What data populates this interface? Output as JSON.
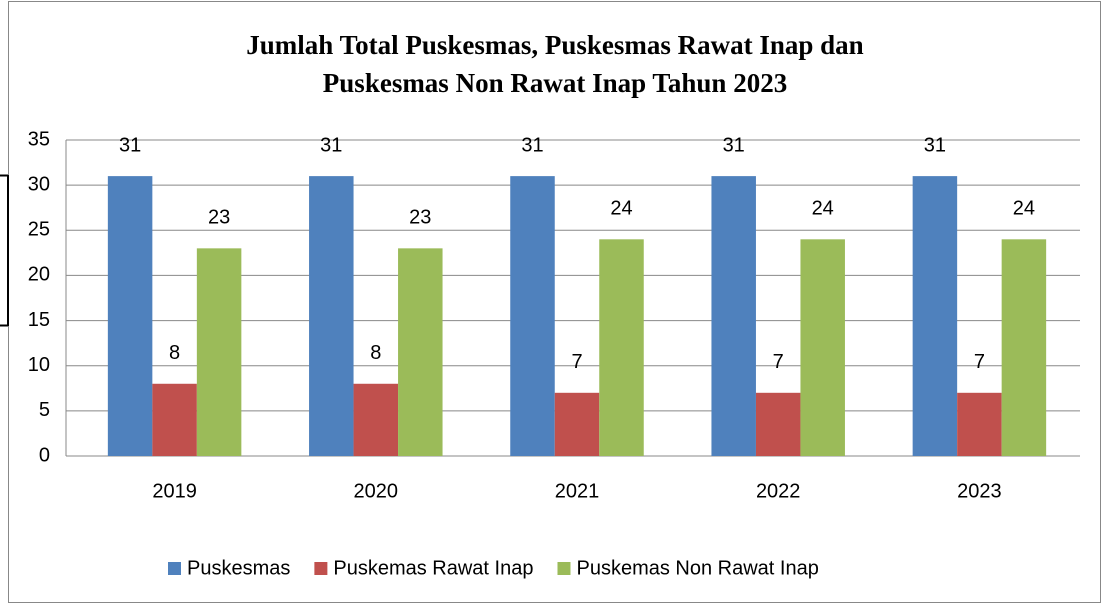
{
  "chart_data": {
    "type": "bar",
    "title": [
      "Jumlah Total Puskesmas, Puskesmas Rawat Inap dan",
      "Puskesmas Non Rawat Inap  Tahun 2023"
    ],
    "categories": [
      "2019",
      "2020",
      "2021",
      "2022",
      "2023"
    ],
    "series": [
      {
        "name": "Puskesmas",
        "color": "#4f81bd",
        "values": [
          31,
          31,
          31,
          31,
          31
        ]
      },
      {
        "name": "Puskemas Rawat Inap",
        "color": "#c0504d",
        "values": [
          8,
          8,
          7,
          7,
          7
        ]
      },
      {
        "name": "Puskemas Non Rawat Inap",
        "color": "#9bbb59",
        "values": [
          23,
          23,
          24,
          24,
          24
        ]
      }
    ],
    "ylim": [
      0,
      35
    ],
    "yticks": [
      0,
      5,
      10,
      15,
      20,
      25,
      30,
      35
    ],
    "grid": true,
    "legend": "bottom"
  }
}
